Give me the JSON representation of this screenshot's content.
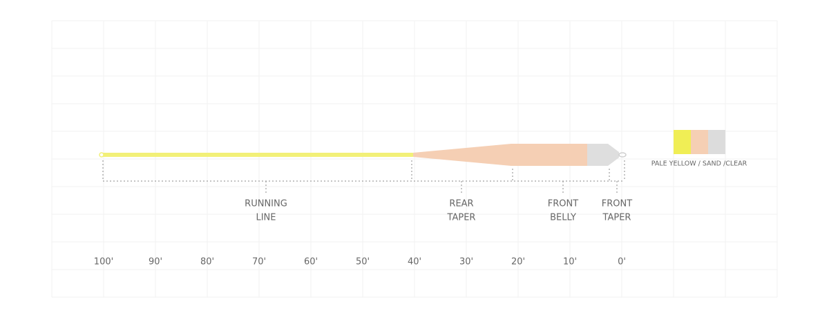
{
  "sections": [
    {
      "lines": [
        "RUNNING",
        "LINE"
      ]
    },
    {
      "lines": [
        "REAR",
        "TAPER"
      ]
    },
    {
      "lines": [
        "FRONT",
        "BELLY"
      ]
    },
    {
      "lines": [
        "FRONT",
        "TAPER"
      ]
    }
  ],
  "scale": [
    "100'",
    "90'",
    "80'",
    "70'",
    "60'",
    "50'",
    "40'",
    "30'",
    "20'",
    "10'",
    "0'"
  ],
  "legend": {
    "label": "PALE YELLOW / SAND /CLEAR"
  }
}
